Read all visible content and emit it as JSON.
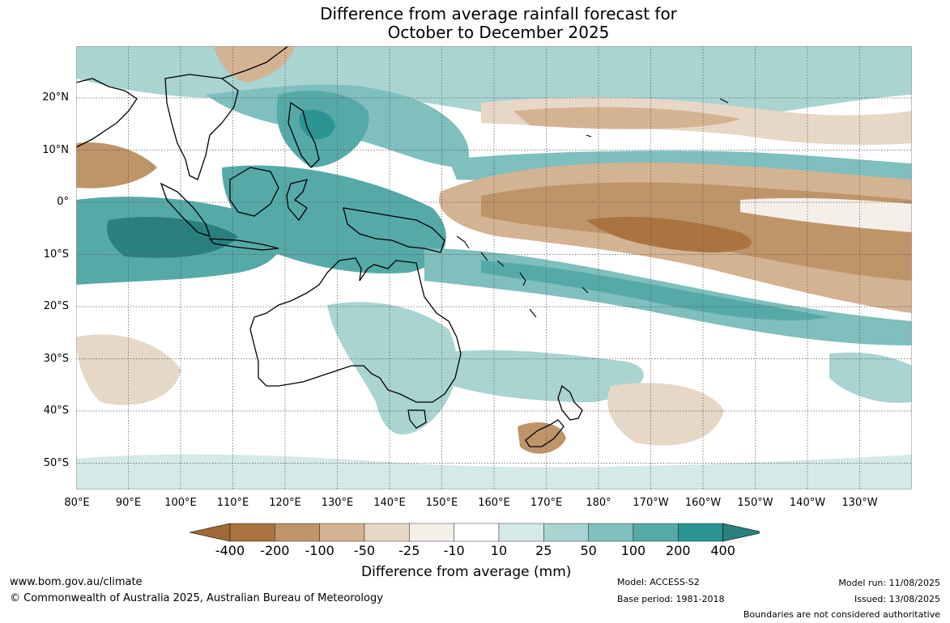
{
  "title": {
    "line1": "Difference from average rainfall forecast for",
    "line2": "October to December 2025"
  },
  "map": {
    "lat_ticks": [
      "20°N",
      "10°N",
      "0°",
      "10°S",
      "20°S",
      "30°S",
      "40°S",
      "50°S"
    ],
    "lon_ticks": [
      "80°E",
      "90°E",
      "100°E",
      "110°E",
      "120°E",
      "130°E",
      "140°E",
      "150°E",
      "160°E",
      "170°E",
      "180°",
      "170°W",
      "160°W",
      "150°W",
      "140°W",
      "130°W"
    ],
    "land_outline_color": "#000000",
    "grid_color": "#555555"
  },
  "colorbar": {
    "title": "Difference from average (mm)",
    "labels": [
      "-400",
      "-200",
      "-100",
      "-50",
      "-25",
      "-10",
      "10",
      "25",
      "50",
      "100",
      "200",
      "400"
    ],
    "colors": [
      "#a06a36",
      "#a9743f",
      "#be9469",
      "#d4b393",
      "#e7d7c7",
      "#f5efe9",
      "#ffffff",
      "#d5e9e8",
      "#a9d4d2",
      "#7fbfbd",
      "#55aaa8",
      "#2a9593",
      "#2a807f"
    ]
  },
  "footer": {
    "website": "www.bom.gov.au/climate",
    "copyright": "© Commonwealth of Australia 2025, Australian Bureau of Meteorology",
    "model": "Model: ACCESS-S2",
    "base_period": "Base period: 1981-2018",
    "model_run": "Model run: 11/08/2025",
    "issued": "Issued: 13/08/2025",
    "disclaimer": "Boundaries are not considered authoritative"
  }
}
